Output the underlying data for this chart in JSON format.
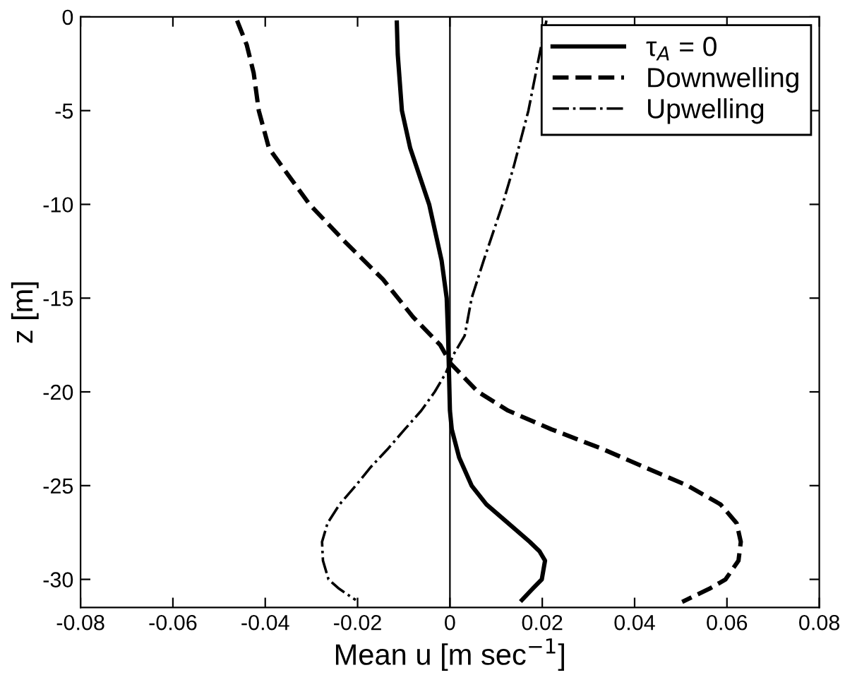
{
  "chart_data": {
    "type": "line",
    "xlabel": "Mean u [m sec$^{−1}$]",
    "ylabel": "z [m]",
    "xlim": [
      -0.08,
      0.08
    ],
    "xticks": [
      -0.08,
      -0.06,
      -0.04,
      -0.02,
      0,
      0.02,
      0.04,
      0.06,
      0.08
    ],
    "ylim": [
      -31.5,
      0
    ],
    "yticks": [
      -30,
      -25,
      -20,
      -15,
      -10,
      -5,
      0
    ],
    "grid": false,
    "legend": "top right",
    "marker": "none",
    "ref_lines": [
      {
        "axis": "x",
        "value": 0,
        "color": "#000000",
        "line_style": "solid"
      }
    ],
    "series": [
      {
        "name": "τ$_{A}$ = 0",
        "color": "#000000",
        "line_style": "solid",
        "x": [
          -0.0115,
          -0.0113,
          -0.0104,
          -0.0086,
          -0.0045,
          -0.0018,
          -0.0007,
          -0.0004,
          -0.0002,
          0.0,
          0.0004,
          0.002,
          0.0047,
          0.0079,
          0.0126,
          0.0173,
          0.0194,
          0.0206,
          0.0199,
          0.0179,
          0.0156
        ],
        "values": [
          -0.3,
          -2,
          -5,
          -7,
          -10,
          -13,
          -15,
          -17,
          -19,
          -21,
          -22,
          -23.5,
          -25,
          -26,
          -27,
          -28,
          -28.5,
          -29,
          -30,
          -30.5,
          -31.1
        ]
      },
      {
        "name": "Downwelling",
        "color": "#000000",
        "line_style": "dashed",
        "x": [
          -0.0461,
          -0.044,
          -0.0425,
          -0.0414,
          -0.0392,
          -0.0363,
          -0.0304,
          -0.0227,
          -0.0145,
          -0.008,
          -0.0021,
          0.0002,
          0.0061,
          0.0126,
          0.022,
          0.0326,
          0.042,
          0.0515,
          0.0586,
          0.0621,
          0.063,
          0.0625,
          0.0597,
          0.0562,
          0.0503
        ],
        "values": [
          -0.2,
          -1.5,
          -3,
          -5,
          -7,
          -8,
          -10,
          -12,
          -14,
          -16,
          -17.5,
          -18.5,
          -20,
          -21,
          -22,
          -23,
          -24,
          -25,
          -26,
          -27,
          -28,
          -29,
          -30,
          -30.5,
          -31.2
        ]
      },
      {
        "name": "Upwelling",
        "color": "#000000",
        "line_style": "dashdot",
        "x": [
          0.0209,
          0.0194,
          0.017,
          0.0138,
          0.0114,
          0.0073,
          0.0047,
          0.0032,
          0.0008,
          -0.0009,
          -0.0033,
          -0.0062,
          -0.0098,
          -0.0133,
          -0.0171,
          -0.0204,
          -0.0239,
          -0.0265,
          -0.0277,
          -0.0275,
          -0.0263,
          -0.024,
          -0.0204
        ],
        "values": [
          -0.2,
          -2,
          -5,
          -8,
          -10,
          -13,
          -15,
          -17,
          -18,
          -19,
          -20,
          -21,
          -22,
          -23,
          -24,
          -25,
          -26,
          -27,
          -28,
          -29,
          -30,
          -30.5,
          -31.1
        ]
      }
    ]
  }
}
